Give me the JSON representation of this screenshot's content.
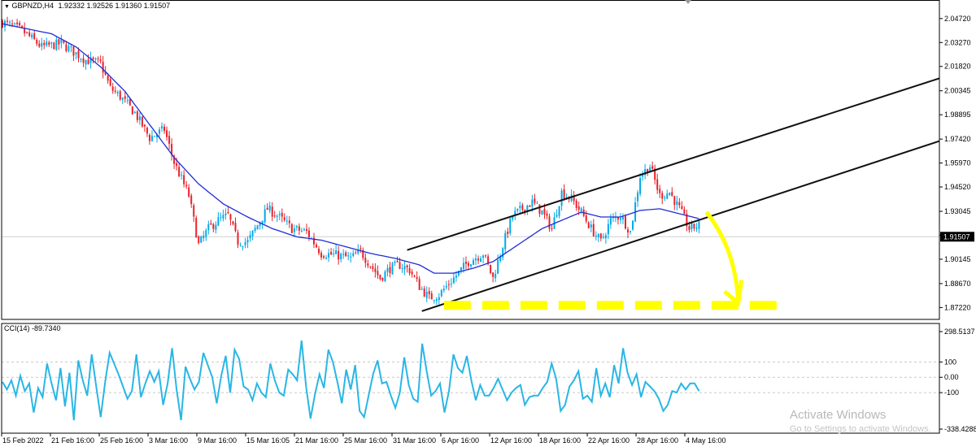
{
  "header": {
    "symbol": "GBPNZD,H4",
    "ohlc": "1.92332 1.92526 1.91360 1.91507",
    "indicator": "CCI(14) -89.7340"
  },
  "watermark": {
    "line1": "Activate Windows",
    "line2": "Go to Settings to activate Windows."
  },
  "colors": {
    "bull": "#00a9e8",
    "bear": "#e8212a",
    "ma": "#1f2cd6",
    "cci": "#29b6e6",
    "channel": "#111111",
    "highlight": "#ffff00",
    "grid": "#c8c8c8"
  },
  "chart_data": [
    {
      "type": "candlestick",
      "symbol": "GBPNZD",
      "timeframe": "H4",
      "ylim": [
        1.865,
        2.0545
      ],
      "y_ticks": [
        "2.04720",
        "2.03270",
        "2.01820",
        "2.00345",
        "1.98895",
        "1.97420",
        "1.95970",
        "1.94520",
        "1.93045",
        "1.91595",
        "1.90145",
        "1.88670",
        "1.87220"
      ],
      "current_price": "1.91507",
      "x_ticks": [
        "15 Feb 2022",
        "21 Feb 16:00",
        "25 Feb 16:00",
        "3 Mar 16:00",
        "9 Mar 16:00",
        "15 Mar 16:05",
        "21 Mar 16:00",
        "25 Mar 16:00",
        "31 Mar 16:00",
        "6 Apr 16:00",
        "12 Apr 16:00",
        "18 Apr 16:00",
        "22 Apr 16:00",
        "28 Apr 16:00",
        "4 May 16:00"
      ],
      "close_path": [
        [
          0,
          2.045
        ],
        [
          8,
          2.04
        ],
        [
          16,
          2.03
        ],
        [
          24,
          2.032
        ],
        [
          34,
          2.022
        ],
        [
          40,
          2.02
        ],
        [
          44,
          2.005
        ],
        [
          48,
          2.0
        ],
        [
          54,
          1.99
        ],
        [
          60,
          1.975
        ],
        [
          66,
          1.98
        ],
        [
          70,
          1.96
        ],
        [
          76,
          1.94
        ],
        [
          80,
          1.91
        ],
        [
          84,
          1.92
        ],
        [
          88,
          1.925
        ],
        [
          92,
          1.928
        ],
        [
          96,
          1.912
        ],
        [
          100,
          1.912
        ],
        [
          104,
          1.922
        ],
        [
          108,
          1.932
        ],
        [
          112,
          1.928
        ],
        [
          118,
          1.92
        ],
        [
          124,
          1.918
        ],
        [
          130,
          1.905
        ],
        [
          136,
          1.904
        ],
        [
          142,
          1.902
        ],
        [
          146,
          1.906
        ],
        [
          150,
          1.898
        ],
        [
          154,
          1.89
        ],
        [
          158,
          1.896
        ],
        [
          162,
          1.898
        ],
        [
          166,
          1.895
        ],
        [
          170,
          1.885
        ],
        [
          174,
          1.878
        ],
        [
          178,
          1.88
        ],
        [
          184,
          1.89
        ],
        [
          190,
          1.9
        ],
        [
          196,
          1.905
        ],
        [
          200,
          1.89
        ],
        [
          204,
          1.91
        ],
        [
          208,
          1.928
        ],
        [
          212,
          1.932
        ],
        [
          216,
          1.936
        ],
        [
          220,
          1.93
        ],
        [
          224,
          1.92
        ],
        [
          228,
          1.942
        ],
        [
          232,
          1.938
        ],
        [
          236,
          1.93
        ],
        [
          240,
          1.92
        ],
        [
          244,
          1.912
        ],
        [
          248,
          1.925
        ],
        [
          252,
          1.928
        ],
        [
          256,
          1.918
        ],
        [
          260,
          1.952
        ],
        [
          264,
          1.958
        ],
        [
          268,
          1.94
        ],
        [
          272,
          1.942
        ],
        [
          276,
          1.932
        ],
        [
          280,
          1.92
        ],
        [
          284,
          1.922
        ]
      ],
      "moving_average": [
        [
          0,
          2.044
        ],
        [
          20,
          2.038
        ],
        [
          30,
          2.03
        ],
        [
          40,
          2.018
        ],
        [
          50,
          2.003
        ],
        [
          60,
          1.983
        ],
        [
          70,
          1.963
        ],
        [
          80,
          1.947
        ],
        [
          90,
          1.935
        ],
        [
          100,
          1.927
        ],
        [
          110,
          1.92
        ],
        [
          120,
          1.915
        ],
        [
          130,
          1.913
        ],
        [
          140,
          1.909
        ],
        [
          150,
          1.905
        ],
        [
          160,
          1.902
        ],
        [
          170,
          1.898
        ],
        [
          176,
          1.893
        ],
        [
          184,
          1.893
        ],
        [
          192,
          1.896
        ],
        [
          200,
          1.9
        ],
        [
          210,
          1.91
        ],
        [
          220,
          1.92
        ],
        [
          228,
          1.925
        ],
        [
          236,
          1.93
        ],
        [
          244,
          1.927
        ],
        [
          252,
          1.927
        ],
        [
          260,
          1.931
        ],
        [
          268,
          1.932
        ],
        [
          276,
          1.929
        ],
        [
          284,
          1.926
        ]
      ],
      "annotations": [
        {
          "kind": "trendline",
          "label": "upper channel line",
          "from": [
            165,
            1.907
          ],
          "to": [
            382,
            2.011
          ]
        },
        {
          "kind": "trendline",
          "label": "lower channel line",
          "from": [
            171,
            1.87
          ],
          "to": [
            382,
            1.973
          ]
        },
        {
          "kind": "dashed-highlight",
          "label": "support zone",
          "y": 1.8735,
          "x_range": [
            180,
            318
          ]
        },
        {
          "kind": "arrow",
          "label": "projected move down",
          "from": [
            287,
            1.93
          ],
          "to": [
            300,
            1.876
          ]
        }
      ]
    },
    {
      "type": "line",
      "name": "CCI(14)",
      "last_value": -89.734,
      "ylim": [
        -338.4288,
        298.5137
      ],
      "y_ticks": [
        "298.5137",
        "100",
        "0.00",
        "-100",
        "-338.4288"
      ],
      "values": [
        -30,
        -80,
        -20,
        -120,
        10,
        -90,
        -40,
        -230,
        -70,
        -130,
        90,
        -40,
        -150,
        60,
        -190,
        30,
        -280,
        110,
        -20,
        -120,
        150,
        -60,
        -260,
        -30,
        160,
        90,
        20,
        -60,
        -140,
        -90,
        150,
        -130,
        -40,
        40,
        -30,
        40,
        -180,
        -40,
        190,
        -80,
        -280,
        70,
        -10,
        -80,
        -30,
        160,
        80,
        0,
        -170,
        10,
        140,
        -100,
        180,
        120,
        -60,
        -80,
        -150,
        -40,
        -100,
        -130,
        90,
        -20,
        -100,
        -120,
        50,
        20,
        -20,
        240,
        -60,
        -270,
        -110,
        20,
        -70,
        180,
        100,
        -30,
        -170,
        50,
        -80,
        80,
        -220,
        -260,
        -120,
        20,
        110,
        -40,
        -30,
        -120,
        -200,
        -100,
        130,
        -50,
        -140,
        -160,
        220,
        40,
        -120,
        -90,
        -40,
        -230,
        -90,
        150,
        60,
        30,
        140,
        -20,
        -150,
        -50,
        -120,
        -120,
        -70,
        -10,
        -80,
        -150,
        -100,
        -70,
        -50,
        -180,
        -130,
        -120,
        -120,
        -70,
        -30,
        90,
        -10,
        -220,
        -180,
        -60,
        -20,
        40,
        -140,
        -120,
        -160,
        60,
        -120,
        -40,
        -130,
        80,
        -40,
        190,
        30,
        -50,
        20,
        -130,
        -30,
        -60,
        -90,
        -140,
        -220,
        -180,
        -90,
        -100,
        -40,
        -80,
        -40,
        -40,
        -90
      ]
    }
  ]
}
